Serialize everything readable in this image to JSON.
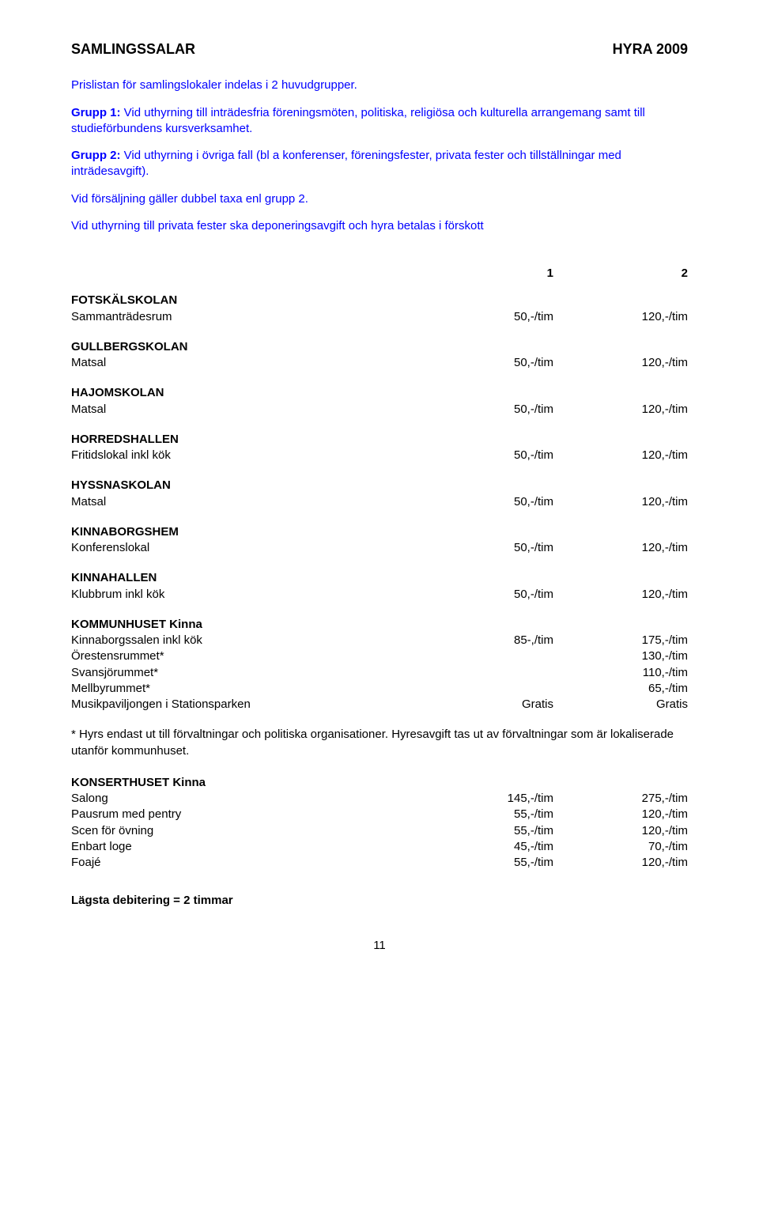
{
  "colors": {
    "text": "#000000",
    "blue": "#0000ff",
    "background": "#ffffff"
  },
  "header": {
    "left": "SAMLINGSSALAR",
    "right": "HYRA 2009"
  },
  "intro": {
    "p1": "Prislistan för samlingslokaler indelas i 2 huvudgrupper.",
    "p2_label": "Grupp 1:",
    "p2_text": " Vid uthyrning till inträdesfria föreningsmöten, politiska, religiösa och kulturella arrangemang samt till studieförbundens kursverksamhet.",
    "p3_label": "Grupp 2:",
    "p3_text": " Vid uthyrning i övriga fall (bl a konferenser, föreningsfester, privata fester och tillställningar med inträdesavgift).",
    "p4": "Vid försäljning gäller dubbel taxa enl grupp 2.",
    "p5": "Vid uthyrning till privata fester ska deponeringsavgift och hyra betalas i förskott"
  },
  "columns": {
    "c1": "1",
    "c2": "2"
  },
  "sections": {
    "fotskal": {
      "title": "FOTSKÄLSKOLAN",
      "rows": [
        {
          "label": "Sammanträdesrum",
          "c1": "50,-/tim",
          "c2": "120,-/tim"
        }
      ]
    },
    "gullberg": {
      "title": "GULLBERGSKOLAN",
      "rows": [
        {
          "label": "Matsal",
          "c1": "50,-/tim",
          "c2": "120,-/tim"
        }
      ]
    },
    "hajom": {
      "title": "HAJOMSKOLAN",
      "rows": [
        {
          "label": "Matsal",
          "c1": "50,-/tim",
          "c2": "120,-/tim"
        }
      ]
    },
    "horred": {
      "title": "HORREDSHALLEN",
      "rows": [
        {
          "label": "Fritidslokal inkl kök",
          "c1": "50,-/tim",
          "c2": "120,-/tim"
        }
      ]
    },
    "hyssna": {
      "title": "HYSSNASKOLAN",
      "rows": [
        {
          "label": "Matsal",
          "c1": "50,-/tim",
          "c2": "120,-/tim"
        }
      ]
    },
    "kinnaborg": {
      "title": "KINNABORGSHEM",
      "rows": [
        {
          "label": "Konferenslokal",
          "c1": "50,-/tim",
          "c2": "120,-/tim"
        }
      ]
    },
    "kinnahall": {
      "title": "KINNAHALLEN",
      "rows": [
        {
          "label": "Klubbrum inkl kök",
          "c1": "50,-/tim",
          "c2": "120,-/tim"
        }
      ]
    },
    "kommunhus": {
      "title": "KOMMUNHUSET Kinna",
      "rows": [
        {
          "label": "Kinnaborgssalen inkl kök",
          "c1": "85-,/tim",
          "c2": "175,-/tim"
        },
        {
          "label": "Örestensrummet*",
          "c1": "",
          "c2": "130,-/tim"
        },
        {
          "label": "Svansjörummet*",
          "c1": "",
          "c2": "110,-/tim"
        },
        {
          "label": "Mellbyrummet*",
          "c1": "",
          "c2": "65,-/tim"
        },
        {
          "label": "Musikpaviljongen i Stationsparken",
          "c1": "Gratis",
          "c2": "Gratis"
        }
      ]
    },
    "konsert": {
      "title": "KONSERTHUSET Kinna",
      "rows": [
        {
          "label": "Salong",
          "c1": "145,-/tim",
          "c2": "275,-/tim"
        },
        {
          "label": "Pausrum med pentry",
          "c1": "55,-/tim",
          "c2": "120,-/tim"
        },
        {
          "label": "Scen för övning",
          "c1": "55,-/tim",
          "c2": "120,-/tim"
        },
        {
          "label": "Enbart loge",
          "c1": "45,-/tim",
          "c2": "70,-/tim"
        },
        {
          "label": "Foajé",
          "c1": "55,-/tim",
          "c2": "120,-/tim"
        }
      ]
    }
  },
  "footnote": "* Hyrs endast ut till förvaltningar och politiska organisationer. Hyresavgift tas ut av förvaltningar som är lokaliserade utanför kommunhuset.",
  "lowest": "Lägsta debitering = 2 timmar",
  "page_number": "11"
}
